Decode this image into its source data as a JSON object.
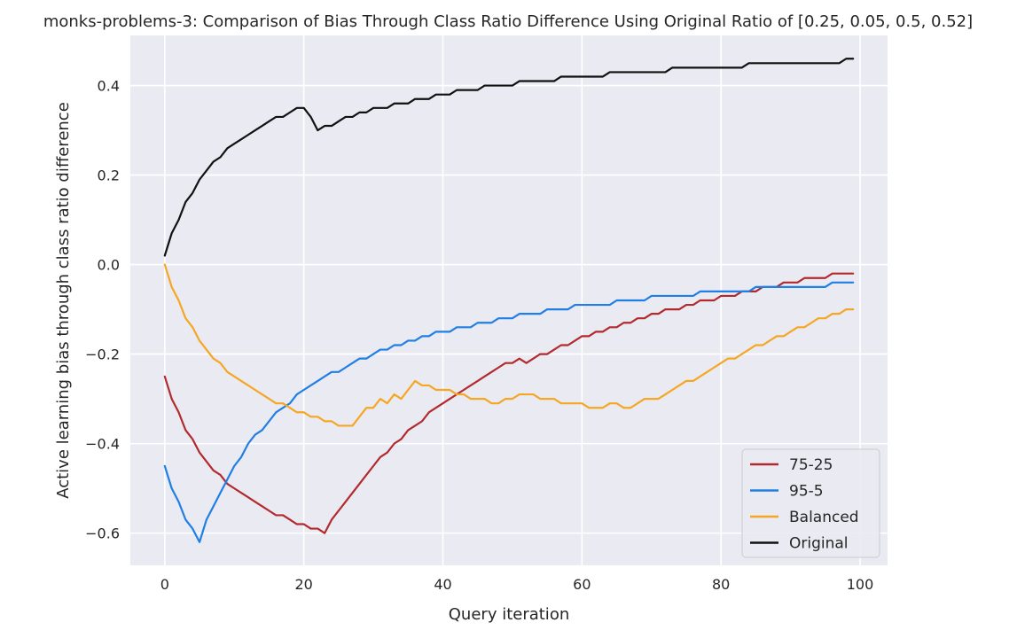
{
  "chart_data": {
    "type": "line",
    "title": "monks-problems-3: Comparison of Bias Through Class Ratio Difference Using Original Ratio of [0.25, 0.05, 0.5, 0.52]",
    "xlabel": "Query iteration",
    "ylabel": "Active learning bias through class ratio difference",
    "xlim": [
      -4.95,
      103.95
    ],
    "ylim": [
      -0.672,
      0.512
    ],
    "xticks": [
      0,
      20,
      40,
      60,
      80,
      100
    ],
    "xtick_labels": [
      "0",
      "20",
      "40",
      "60",
      "80",
      "100"
    ],
    "yticks": [
      -0.6,
      -0.4,
      -0.2,
      0.0,
      0.2,
      0.4
    ],
    "ytick_labels": [
      "−0.6",
      "−0.4",
      "−0.2",
      "0.0",
      "0.2",
      "0.4"
    ],
    "grid": true,
    "legend_position": "lower-right",
    "background_color": "#eaeaf2",
    "series": [
      {
        "name": "75-25",
        "color": "#b22a2e",
        "x": [
          0,
          1,
          2,
          3,
          4,
          5,
          6,
          7,
          8,
          9,
          10,
          11,
          12,
          13,
          14,
          15,
          16,
          17,
          18,
          19,
          20,
          21,
          22,
          23,
          24,
          25,
          26,
          27,
          28,
          29,
          30,
          31,
          32,
          33,
          34,
          35,
          36,
          37,
          38,
          39,
          40,
          41,
          42,
          43,
          44,
          45,
          46,
          47,
          48,
          49,
          50,
          51,
          52,
          53,
          54,
          55,
          56,
          57,
          58,
          59,
          60,
          61,
          62,
          63,
          64,
          65,
          66,
          67,
          68,
          69,
          70,
          71,
          72,
          73,
          74,
          75,
          76,
          77,
          78,
          79,
          80,
          81,
          82,
          83,
          84,
          85,
          86,
          87,
          88,
          89,
          90,
          91,
          92,
          93,
          94,
          95,
          96,
          97,
          98,
          99
        ],
        "y": [
          -0.25,
          -0.3,
          -0.33,
          -0.37,
          -0.39,
          -0.42,
          -0.44,
          -0.46,
          -0.47,
          -0.49,
          -0.5,
          -0.51,
          -0.52,
          -0.53,
          -0.54,
          -0.55,
          -0.56,
          -0.56,
          -0.57,
          -0.58,
          -0.58,
          -0.59,
          -0.59,
          -0.6,
          -0.57,
          -0.55,
          -0.53,
          -0.51,
          -0.49,
          -0.47,
          -0.45,
          -0.43,
          -0.42,
          -0.4,
          -0.39,
          -0.37,
          -0.36,
          -0.35,
          -0.33,
          -0.32,
          -0.31,
          -0.3,
          -0.29,
          -0.28,
          -0.27,
          -0.26,
          -0.25,
          -0.24,
          -0.23,
          -0.22,
          -0.22,
          -0.21,
          -0.22,
          -0.21,
          -0.2,
          -0.2,
          -0.19,
          -0.18,
          -0.18,
          -0.17,
          -0.16,
          -0.16,
          -0.15,
          -0.15,
          -0.14,
          -0.14,
          -0.13,
          -0.13,
          -0.12,
          -0.12,
          -0.11,
          -0.11,
          -0.1,
          -0.1,
          -0.1,
          -0.09,
          -0.09,
          -0.08,
          -0.08,
          -0.08,
          -0.07,
          -0.07,
          -0.07,
          -0.06,
          -0.06,
          -0.06,
          -0.05,
          -0.05,
          -0.05,
          -0.04,
          -0.04,
          -0.04,
          -0.03,
          -0.03,
          -0.03,
          -0.03,
          -0.02,
          -0.02,
          -0.02,
          -0.02
        ]
      },
      {
        "name": "95-5",
        "color": "#1f7fe5",
        "x": [
          0,
          1,
          2,
          3,
          4,
          5,
          6,
          7,
          8,
          9,
          10,
          11,
          12,
          13,
          14,
          15,
          16,
          17,
          18,
          19,
          20,
          21,
          22,
          23,
          24,
          25,
          26,
          27,
          28,
          29,
          30,
          31,
          32,
          33,
          34,
          35,
          36,
          37,
          38,
          39,
          40,
          41,
          42,
          43,
          44,
          45,
          46,
          47,
          48,
          49,
          50,
          51,
          52,
          53,
          54,
          55,
          56,
          57,
          58,
          59,
          60,
          61,
          62,
          63,
          64,
          65,
          66,
          67,
          68,
          69,
          70,
          71,
          72,
          73,
          74,
          75,
          76,
          77,
          78,
          79,
          80,
          81,
          82,
          83,
          84,
          85,
          86,
          87,
          88,
          89,
          90,
          91,
          92,
          93,
          94,
          95,
          96,
          97,
          98,
          99
        ],
        "y": [
          -0.45,
          -0.5,
          -0.53,
          -0.57,
          -0.59,
          -0.62,
          -0.57,
          -0.54,
          -0.51,
          -0.48,
          -0.45,
          -0.43,
          -0.4,
          -0.38,
          -0.37,
          -0.35,
          -0.33,
          -0.32,
          -0.31,
          -0.29,
          -0.28,
          -0.27,
          -0.26,
          -0.25,
          -0.24,
          -0.24,
          -0.23,
          -0.22,
          -0.21,
          -0.21,
          -0.2,
          -0.19,
          -0.19,
          -0.18,
          -0.18,
          -0.17,
          -0.17,
          -0.16,
          -0.16,
          -0.15,
          -0.15,
          -0.15,
          -0.14,
          -0.14,
          -0.14,
          -0.13,
          -0.13,
          -0.13,
          -0.12,
          -0.12,
          -0.12,
          -0.11,
          -0.11,
          -0.11,
          -0.11,
          -0.1,
          -0.1,
          -0.1,
          -0.1,
          -0.09,
          -0.09,
          -0.09,
          -0.09,
          -0.09,
          -0.09,
          -0.08,
          -0.08,
          -0.08,
          -0.08,
          -0.08,
          -0.07,
          -0.07,
          -0.07,
          -0.07,
          -0.07,
          -0.07,
          -0.07,
          -0.06,
          -0.06,
          -0.06,
          -0.06,
          -0.06,
          -0.06,
          -0.06,
          -0.06,
          -0.05,
          -0.05,
          -0.05,
          -0.05,
          -0.05,
          -0.05,
          -0.05,
          -0.05,
          -0.05,
          -0.05,
          -0.05,
          -0.04,
          -0.04,
          -0.04,
          -0.04
        ]
      },
      {
        "name": "Balanced",
        "color": "#f5a623",
        "x": [
          0,
          1,
          2,
          3,
          4,
          5,
          6,
          7,
          8,
          9,
          10,
          11,
          12,
          13,
          14,
          15,
          16,
          17,
          18,
          19,
          20,
          21,
          22,
          23,
          24,
          25,
          26,
          27,
          28,
          29,
          30,
          31,
          32,
          33,
          34,
          35,
          36,
          37,
          38,
          39,
          40,
          41,
          42,
          43,
          44,
          45,
          46,
          47,
          48,
          49,
          50,
          51,
          52,
          53,
          54,
          55,
          56,
          57,
          58,
          59,
          60,
          61,
          62,
          63,
          64,
          65,
          66,
          67,
          68,
          69,
          70,
          71,
          72,
          73,
          74,
          75,
          76,
          77,
          78,
          79,
          80,
          81,
          82,
          83,
          84,
          85,
          86,
          87,
          88,
          89,
          90,
          91,
          92,
          93,
          94,
          95,
          96,
          97,
          98,
          99
        ],
        "y": [
          0.0,
          -0.05,
          -0.08,
          -0.12,
          -0.14,
          -0.17,
          -0.19,
          -0.21,
          -0.22,
          -0.24,
          -0.25,
          -0.26,
          -0.27,
          -0.28,
          -0.29,
          -0.3,
          -0.31,
          -0.31,
          -0.32,
          -0.33,
          -0.33,
          -0.34,
          -0.34,
          -0.35,
          -0.35,
          -0.36,
          -0.36,
          -0.36,
          -0.34,
          -0.32,
          -0.32,
          -0.3,
          -0.31,
          -0.29,
          -0.3,
          -0.28,
          -0.26,
          -0.27,
          -0.27,
          -0.28,
          -0.28,
          -0.28,
          -0.29,
          -0.29,
          -0.3,
          -0.3,
          -0.3,
          -0.31,
          -0.31,
          -0.3,
          -0.3,
          -0.29,
          -0.29,
          -0.29,
          -0.3,
          -0.3,
          -0.3,
          -0.31,
          -0.31,
          -0.31,
          -0.31,
          -0.32,
          -0.32,
          -0.32,
          -0.31,
          -0.31,
          -0.32,
          -0.32,
          -0.31,
          -0.3,
          -0.3,
          -0.3,
          -0.29,
          -0.28,
          -0.27,
          -0.26,
          -0.26,
          -0.25,
          -0.24,
          -0.23,
          -0.22,
          -0.21,
          -0.21,
          -0.2,
          -0.19,
          -0.18,
          -0.18,
          -0.17,
          -0.16,
          -0.16,
          -0.15,
          -0.14,
          -0.14,
          -0.13,
          -0.12,
          -0.12,
          -0.11,
          -0.11,
          -0.1,
          -0.1
        ]
      },
      {
        "name": "Original",
        "color": "#111111",
        "x": [
          0,
          1,
          2,
          3,
          4,
          5,
          6,
          7,
          8,
          9,
          10,
          11,
          12,
          13,
          14,
          15,
          16,
          17,
          18,
          19,
          20,
          21,
          22,
          23,
          24,
          25,
          26,
          27,
          28,
          29,
          30,
          31,
          32,
          33,
          34,
          35,
          36,
          37,
          38,
          39,
          40,
          41,
          42,
          43,
          44,
          45,
          46,
          47,
          48,
          49,
          50,
          51,
          52,
          53,
          54,
          55,
          56,
          57,
          58,
          59,
          60,
          61,
          62,
          63,
          64,
          65,
          66,
          67,
          68,
          69,
          70,
          71,
          72,
          73,
          74,
          75,
          76,
          77,
          78,
          79,
          80,
          81,
          82,
          83,
          84,
          85,
          86,
          87,
          88,
          89,
          90,
          91,
          92,
          93,
          94,
          95,
          96,
          97,
          98,
          99
        ],
        "y": [
          0.02,
          0.07,
          0.1,
          0.14,
          0.16,
          0.19,
          0.21,
          0.23,
          0.24,
          0.26,
          0.27,
          0.28,
          0.29,
          0.3,
          0.31,
          0.32,
          0.33,
          0.33,
          0.34,
          0.35,
          0.35,
          0.33,
          0.3,
          0.31,
          0.31,
          0.32,
          0.33,
          0.33,
          0.34,
          0.34,
          0.35,
          0.35,
          0.35,
          0.36,
          0.36,
          0.36,
          0.37,
          0.37,
          0.37,
          0.38,
          0.38,
          0.38,
          0.39,
          0.39,
          0.39,
          0.39,
          0.4,
          0.4,
          0.4,
          0.4,
          0.4,
          0.41,
          0.41,
          0.41,
          0.41,
          0.41,
          0.41,
          0.42,
          0.42,
          0.42,
          0.42,
          0.42,
          0.42,
          0.42,
          0.43,
          0.43,
          0.43,
          0.43,
          0.43,
          0.43,
          0.43,
          0.43,
          0.43,
          0.44,
          0.44,
          0.44,
          0.44,
          0.44,
          0.44,
          0.44,
          0.44,
          0.44,
          0.44,
          0.44,
          0.45,
          0.45,
          0.45,
          0.45,
          0.45,
          0.45,
          0.45,
          0.45,
          0.45,
          0.45,
          0.45,
          0.45,
          0.45,
          0.45,
          0.46,
          0.46
        ]
      }
    ]
  }
}
